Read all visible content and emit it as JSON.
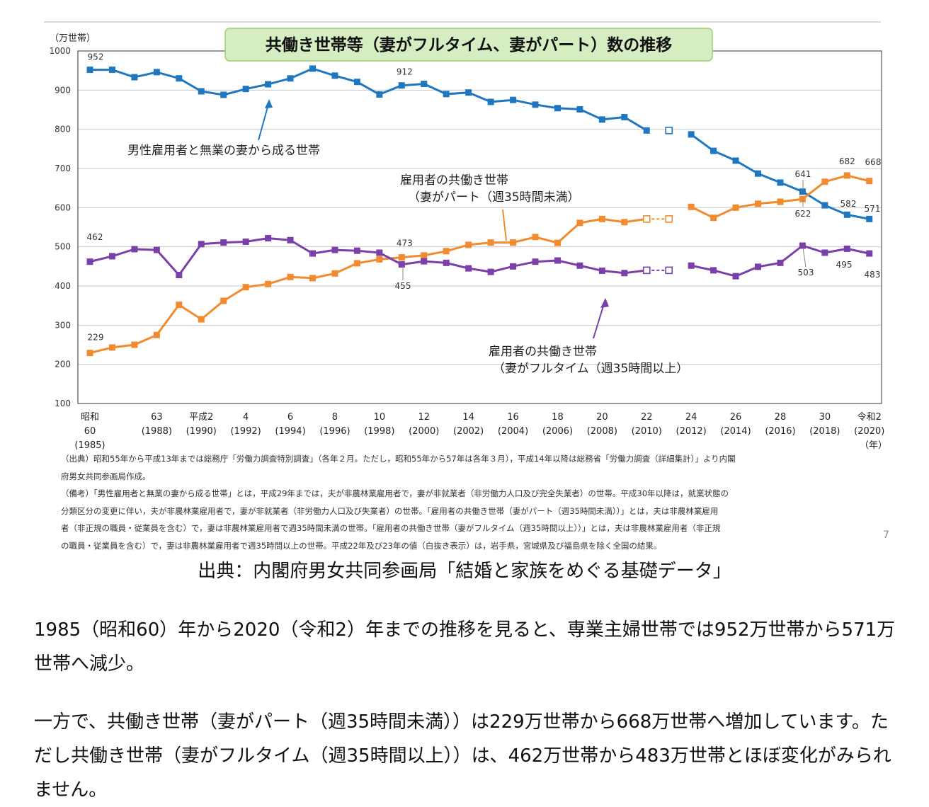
{
  "chart_data": {
    "type": "line",
    "title": "共働き世帯等（妻がフルタイム、妻がパート）数の推移",
    "ylabel": "（万世帯）",
    "ylim": [
      100,
      1000
    ],
    "yticks": [
      100,
      200,
      300,
      400,
      500,
      600,
      700,
      800,
      900,
      1000
    ],
    "xlabel_unit": "（年）",
    "x": [
      1985,
      1986,
      1987,
      1988,
      1989,
      1990,
      1991,
      1992,
      1993,
      1994,
      1995,
      1996,
      1997,
      1998,
      1999,
      2000,
      2001,
      2002,
      2003,
      2004,
      2005,
      2006,
      2007,
      2008,
      2009,
      2010,
      2011,
      2012,
      2013,
      2014,
      2015,
      2016,
      2017,
      2018,
      2019,
      2020
    ],
    "xticks": [
      {
        "year": 1985,
        "l1": "昭和",
        "l2": "60",
        "l3": "(1985)"
      },
      {
        "year": 1988,
        "l1": "63",
        "l2": "(1988)"
      },
      {
        "year": 1990,
        "l1": "平成2",
        "l2": "(1990)"
      },
      {
        "year": 1992,
        "l1": "4",
        "l2": "(1992)"
      },
      {
        "year": 1994,
        "l1": "6",
        "l2": "(1994)"
      },
      {
        "year": 1996,
        "l1": "8",
        "l2": "(1996)"
      },
      {
        "year": 1998,
        "l1": "10",
        "l2": "(1998)"
      },
      {
        "year": 2000,
        "l1": "12",
        "l2": "(2000)"
      },
      {
        "year": 2002,
        "l1": "14",
        "l2": "(2002)"
      },
      {
        "year": 2004,
        "l1": "16",
        "l2": "(2004)"
      },
      {
        "year": 2006,
        "l1": "18",
        "l2": "(2006)"
      },
      {
        "year": 2008,
        "l1": "20",
        "l2": "(2008)"
      },
      {
        "year": 2010,
        "l1": "22",
        "l2": "(2010)"
      },
      {
        "year": 2012,
        "l1": "24",
        "l2": "(2012)"
      },
      {
        "year": 2014,
        "l1": "26",
        "l2": "(2014)"
      },
      {
        "year": 2016,
        "l1": "28",
        "l2": "(2016)"
      },
      {
        "year": 2018,
        "l1": "30",
        "l2": "(2018)"
      },
      {
        "year": 2020,
        "l1": "令和2",
        "l2": "(2020)"
      }
    ],
    "series": [
      {
        "name": "男性雇用者と無業の妻から成る世帯",
        "color": "#1f77c0",
        "values": [
          952,
          952,
          933,
          946,
          930,
          897,
          888,
          903,
          915,
          930,
          955,
          937,
          921,
          889,
          912,
          916,
          890,
          894,
          870,
          875,
          863,
          854,
          851,
          825,
          831,
          797,
          797,
          787,
          745,
          720,
          687,
          664,
          641,
          606,
          582,
          571
        ],
        "hollow_years": [
          2011
        ],
        "labels": [
          {
            "year": 1985,
            "text": "952"
          },
          {
            "year": 1999,
            "text": "912"
          },
          {
            "year": 2017,
            "text": "641"
          },
          {
            "year": 2019,
            "text": "582"
          },
          {
            "year": 2020,
            "text": "571"
          }
        ]
      },
      {
        "name": "雇用者の共働き世帯（妻がパート（週35時間未満））",
        "color": "#f28a2e",
        "values": [
          229,
          243,
          250,
          275,
          352,
          315,
          362,
          397,
          405,
          423,
          420,
          432,
          458,
          468,
          473,
          478,
          489,
          505,
          511,
          511,
          525,
          510,
          561,
          571,
          563,
          571,
          571,
          602,
          574,
          600,
          610,
          615,
          622,
          666,
          682,
          668
        ],
        "hollow_years": [
          2010,
          2011
        ],
        "labels": [
          {
            "year": 1985,
            "text": "229"
          },
          {
            "year": 1999,
            "text": "473"
          },
          {
            "year": 2017,
            "text": "622"
          },
          {
            "year": 2019,
            "text": "682"
          },
          {
            "year": 2020,
            "text": "668"
          }
        ]
      },
      {
        "name": "雇用者の共働き世帯（妻がフルタイム（週35時間以上））",
        "color": "#7a3fa8",
        "values": [
          462,
          476,
          494,
          492,
          428,
          507,
          511,
          513,
          522,
          517,
          483,
          492,
          490,
          485,
          455,
          463,
          459,
          445,
          436,
          450,
          462,
          465,
          452,
          439,
          433,
          440,
          440,
          452,
          440,
          425,
          449,
          459,
          503,
          485,
          495,
          483
        ],
        "hollow_years": [
          2010,
          2011
        ],
        "labels": [
          {
            "year": 1985,
            "text": "462"
          },
          {
            "year": 1999,
            "text": "455"
          },
          {
            "year": 2017,
            "text": "503"
          },
          {
            "year": 2019,
            "text": "495"
          },
          {
            "year": 2020,
            "text": "483"
          }
        ]
      }
    ],
    "annotations": {
      "male": "男性雇用者と無業の妻から成る世帯",
      "part_line1": "雇用者の共働き世帯",
      "part_line2": "（妻がパート（週35時間未満）",
      "full_line1": "雇用者の共働き世帯",
      "full_line2": "（妻がフルタイム（週35時間以上）"
    },
    "grid": true,
    "legend": "none"
  },
  "notes": [
    "（出典）昭和55年から平成13年までは総務庁「労働力調査特別調査」（各年２月。ただし，昭和55年から57年は各年３月），平成14年以降は総務省「労働力調査（詳細集計）」より内閣",
    "府男女共同参画局作成。",
    "（備考）「男性雇用者と無業の妻から成る世帯」とは，平成29年までは，夫が非農林業雇用者で，妻が非就業者（非労働力人口及び完全失業者）の世帯。平成30年以降は，就業状態の",
    "分類区分の変更に伴い，夫が非農林業雇用者で，妻が非就業者（非労働力人口及び失業者）の世帯。「雇用者の共働き世帯（妻がパート（週35時間未満））」とは，夫は非農林業雇用",
    "者（非正規の職員・従業員を含む）で，妻は非農林業雇用者で週35時間未満の世帯。「雇用者の共働き世帯（妻がフルタイム（週35時間以上））」とは，夫は非農林業雇用者（非正規",
    "の職員・従業員を含む）で，妻は非農林業雇用者で週35時間以上の世帯。平成22年及び23年の値（白抜き表示）は，岩手県，宮城県及び福島県を除く全国の結果。"
  ],
  "page_number": "7",
  "source": "出典：内閣府男女共同参画局「結婚と家族をめぐる基礎データ」",
  "paragraph1": "1985（昭和60）年から2020（令和2）年までの推移を見ると、専業主婦世帯では952万世帯から571万世帯へ減少。",
  "paragraph2": "一方で、共働き世帯（妻がパート（週35時間未満））は229万世帯から668万世帯へ増加しています。ただし共働き世帯（妻がフルタイム（週35時間以上））は、462万世帯から483万世帯とほぼ変化がみられません。"
}
